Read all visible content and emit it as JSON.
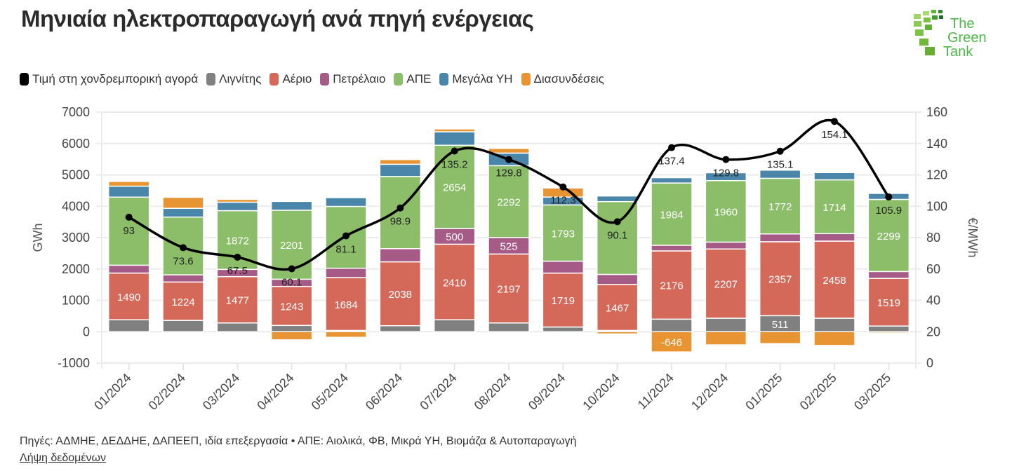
{
  "header": {
    "title": "Μηνιαία ηλεκτροπαραγωγή ανά πηγή ενέργειας",
    "logo_text": [
      "The",
      "Green",
      "Tank"
    ]
  },
  "legend": [
    {
      "label": "Τιμή στη χονδρεμπορική αγορά",
      "color": "#000000",
      "icon": "line-series"
    },
    {
      "label": "Λιγνίτης",
      "color": "#808080",
      "icon": "bar-series"
    },
    {
      "label": "Αέριο",
      "color": "#d4695a",
      "icon": "bar-series"
    },
    {
      "label": "Πετρέλαιο",
      "color": "#a65a86",
      "icon": "bar-series"
    },
    {
      "label": "ΑΠΕ",
      "color": "#8cbd69",
      "icon": "bar-series"
    },
    {
      "label": "Μεγάλα ΥΗ",
      "color": "#4a86aa",
      "icon": "bar-series"
    },
    {
      "label": "Διασυνδέσεις",
      "color": "#e89433",
      "icon": "bar-series"
    }
  ],
  "chart_data": {
    "type": "bar",
    "stacked": true,
    "title": "Μηνιαία ηλεκτροπαραγωγή ανά πηγή ενέργειας",
    "xlabel": "",
    "ylabel": "GWh",
    "y2label": "€/MWh",
    "ylim": [
      -1000,
      7000
    ],
    "y2lim": [
      0,
      160
    ],
    "yticks": [
      "7000",
      "6000",
      "5000",
      "4000",
      "3000",
      "2000",
      "1000",
      "0",
      "-1000"
    ],
    "y2ticks": [
      "160",
      "140",
      "120",
      "100",
      "80",
      "60",
      "40",
      "20",
      "0"
    ],
    "grid": true,
    "categories": [
      "01/2024",
      "02/2024",
      "03/2024",
      "04/2024",
      "05/2024",
      "06/2024",
      "07/2024",
      "08/2024",
      "09/2024",
      "10/2024",
      "11/2024",
      "12/2024",
      "01/2025",
      "02/2025",
      "03/2025"
    ],
    "series": [
      {
        "name": "Λιγνίτης",
        "color": "#808080",
        "values": [
          380,
          360,
          280,
          200,
          40,
          190,
          380,
          280,
          150,
          40,
          400,
          430,
          511,
          430,
          180
        ],
        "labels": [
          null,
          null,
          null,
          null,
          null,
          null,
          null,
          null,
          null,
          null,
          null,
          null,
          "511",
          null,
          null
        ]
      },
      {
        "name": "Αέριο",
        "color": "#d4695a",
        "values": [
          1490,
          1224,
          1477,
          1243,
          1684,
          2038,
          2410,
          2197,
          1719,
          1467,
          2176,
          2207,
          2357,
          2458,
          1519
        ],
        "labels": [
          "1490",
          "1224",
          "1477",
          "1243",
          "1684",
          "2038",
          "2410",
          "2197",
          "1719",
          "1467",
          "2176",
          "2207",
          "2357",
          "2458",
          "1519"
        ]
      },
      {
        "name": "Πετρέλαιο",
        "color": "#a65a86",
        "values": [
          250,
          230,
          230,
          230,
          300,
          420,
          500,
          525,
          380,
          320,
          180,
          220,
          250,
          240,
          220
        ],
        "labels": [
          null,
          null,
          null,
          null,
          null,
          null,
          "500",
          "525",
          null,
          null,
          null,
          null,
          null,
          null,
          null
        ]
      },
      {
        "name": "ΑΠΕ",
        "color": "#8cbd69",
        "values": [
          2170,
          1840,
          1872,
          2201,
          1970,
          2300,
          2654,
          2292,
          1793,
          2320,
          1984,
          1960,
          1772,
          1714,
          2299
        ],
        "labels": [
          null,
          null,
          "1872",
          "2201",
          null,
          null,
          "2654",
          "2292",
          "1793",
          null,
          "1984",
          "1960",
          "1772",
          "1714",
          "2299"
        ]
      },
      {
        "name": "Μεγάλα ΥΗ",
        "color": "#4a86aa",
        "values": [
          350,
          280,
          270,
          280,
          280,
          390,
          430,
          400,
          250,
          180,
          170,
          250,
          260,
          230,
          190
        ],
        "labels": [
          null,
          null,
          null,
          null,
          null,
          null,
          null,
          null,
          null,
          null,
          null,
          null,
          null,
          null,
          null
        ]
      },
      {
        "name": "Διασυνδέσεις",
        "color": "#e89433",
        "values": [
          150,
          350,
          90,
          -260,
          -180,
          150,
          90,
          150,
          290,
          -70,
          -646,
          -420,
          -380,
          -440,
          -40
        ],
        "labels": [
          null,
          null,
          null,
          null,
          null,
          null,
          null,
          null,
          null,
          null,
          "-646",
          null,
          null,
          null,
          null
        ]
      }
    ],
    "line": {
      "name": "Τιμή στη χονδρεμπορική αγορά",
      "color": "#000000",
      "axis": "right",
      "values": [
        93,
        73.6,
        67.5,
        60.1,
        81.1,
        98.9,
        135.2,
        129.8,
        112.3,
        90.1,
        137.4,
        129.8,
        135.1,
        154.1,
        105.9
      ],
      "labels": [
        "93",
        "73.6",
        "67.5",
        "60.1",
        "81.1",
        "98.9",
        "135.2",
        "129.8",
        "112.3",
        "90.1",
        "137.4",
        "129.8",
        "135.1",
        "154.1",
        "105.9"
      ]
    }
  },
  "footer": {
    "sources": "Πηγές: ΑΔΜΗΕ, ΔΕΔΔΗΕ, ΔΑΠΕΕΠ, ιδία επεξεργασία • ΑΠΕ: Αιολικά, ΦΒ, Μικρά ΥΗ, Βιομάζα & Αυτοπαραγωγή",
    "download_link": "Λήψη δεδομένων"
  }
}
